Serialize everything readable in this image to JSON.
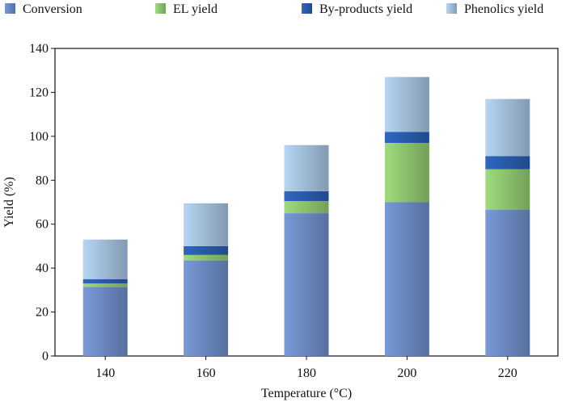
{
  "chart_data": {
    "type": "bar",
    "stacked": true,
    "xlabel": "Temperature (°C)",
    "ylabel": "Yield (%)",
    "ylim": [
      0,
      140
    ],
    "yticks": [
      0,
      20,
      40,
      60,
      80,
      100,
      120,
      140
    ],
    "categories": [
      "140",
      "160",
      "180",
      "200",
      "220"
    ],
    "legend_position": "top",
    "grid": false,
    "series": [
      {
        "name": "Conversion",
        "values": [
          31.5,
          43.5,
          65,
          70,
          66.5
        ],
        "color": "#6f8fc9"
      },
      {
        "name": "EL yield",
        "values": [
          1.5,
          2.5,
          5.5,
          27,
          18.5
        ],
        "color": "#93cc73"
      },
      {
        "name": "By-products yield",
        "values": [
          2,
          4,
          4.5,
          5,
          6
        ],
        "color": "#2b5fb4"
      },
      {
        "name": "Phenolics yield",
        "values": [
          18,
          19.5,
          21,
          25,
          26
        ],
        "color": "#a8c6e2"
      }
    ]
  }
}
